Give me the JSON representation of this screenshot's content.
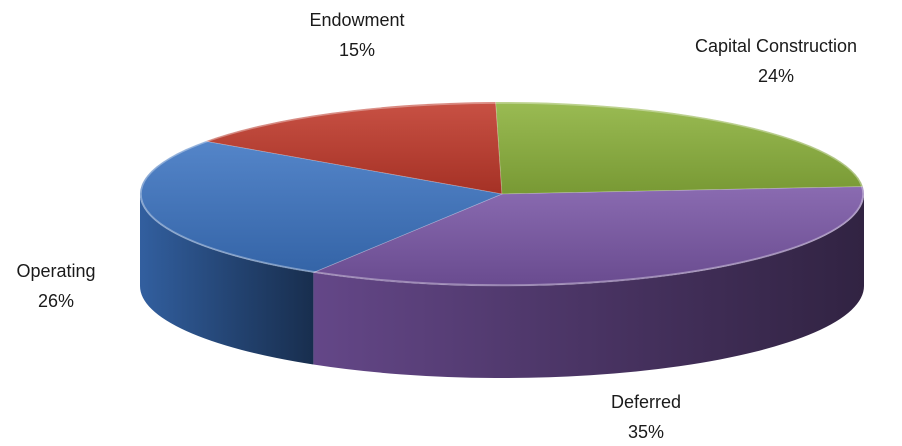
{
  "chart_data": {
    "type": "pie",
    "style": "3d",
    "slices": [
      {
        "label": "Endowment",
        "value": 15,
        "display": "15%",
        "color": "#c0392b"
      },
      {
        "label": "Capital Construction",
        "value": 24,
        "display": "24%",
        "color": "#8cb23c"
      },
      {
        "label": "Deferred",
        "value": 35,
        "display": "35%",
        "color": "#7a57a6"
      },
      {
        "label": "Operating",
        "value": 26,
        "display": "26%",
        "color": "#3d74c2"
      }
    ]
  }
}
